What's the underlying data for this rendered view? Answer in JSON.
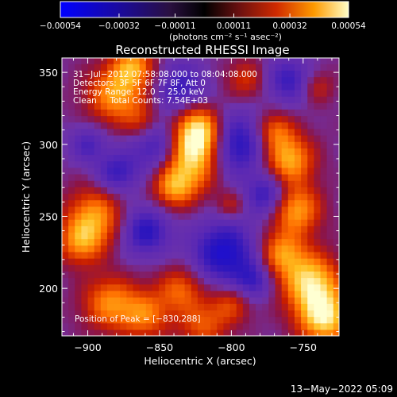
{
  "chart_data": {
    "type": "heatmap",
    "title": "Reconstructed RHESSI Image",
    "xlabel": "Heliocentric X (arcsec)",
    "ylabel": "Heliocentric Y (arcsec)",
    "xlim": [
      -918,
      -725
    ],
    "ylim": [
      167,
      360
    ],
    "x_ticks": [
      -900,
      -850,
      -800,
      -750
    ],
    "x_tick_labels": [
      "−900",
      "−850",
      "−800",
      "−750"
    ],
    "y_ticks": [
      200,
      250,
      300,
      350
    ],
    "y_tick_labels": [
      "200",
      "250",
      "300",
      "350"
    ],
    "colorbar": {
      "min": -0.00054,
      "max": 0.00054,
      "ticks": [
        -0.00054,
        -0.00032,
        -0.00011,
        0.00011,
        0.00032,
        0.00054
      ],
      "tick_labels": [
        "−0.00054",
        "−0.00032",
        "−0.00011",
        "0.00011",
        "0.00032",
        "0.00054"
      ],
      "unit_label": "(photons cm⁻² s⁻¹ asec⁻²)"
    },
    "annotations": [
      "31−Jul−2012 07:58:08.000 to 08:04:08.000",
      "Detectors: 3F 5F 6F 7F 8F, Att 0",
      "Energy Range: 12.0 − 25.0 keV",
      "Clean     Total Counts: 7.54E+03"
    ],
    "peak_label": "Position of Peak = [−830,288]",
    "peak_position": [
      -830,
      288
    ],
    "hotspots": [
      {
        "x": -828,
        "y": 292,
        "r": 16,
        "v": 1.0
      },
      {
        "x": -822,
        "y": 310,
        "r": 12,
        "v": 0.85
      },
      {
        "x": -840,
        "y": 270,
        "r": 10,
        "v": 0.55
      },
      {
        "x": -880,
        "y": 335,
        "r": 14,
        "v": 0.7
      },
      {
        "x": -868,
        "y": 355,
        "r": 10,
        "v": 0.6
      },
      {
        "x": -862,
        "y": 315,
        "r": 9,
        "v": 0.4
      },
      {
        "x": -895,
        "y": 250,
        "r": 14,
        "v": 0.65
      },
      {
        "x": -905,
        "y": 232,
        "r": 11,
        "v": 0.55
      },
      {
        "x": -885,
        "y": 190,
        "r": 13,
        "v": 0.6
      },
      {
        "x": -860,
        "y": 182,
        "r": 12,
        "v": 0.55
      },
      {
        "x": -835,
        "y": 200,
        "r": 11,
        "v": 0.5
      },
      {
        "x": -820,
        "y": 175,
        "r": 12,
        "v": 0.45
      },
      {
        "x": -800,
        "y": 190,
        "r": 10,
        "v": 0.4
      },
      {
        "x": -760,
        "y": 290,
        "r": 12,
        "v": 0.75
      },
      {
        "x": -755,
        "y": 255,
        "r": 12,
        "v": 0.7
      },
      {
        "x": -765,
        "y": 225,
        "r": 11,
        "v": 0.6
      },
      {
        "x": -745,
        "y": 205,
        "r": 14,
        "v": 0.85
      },
      {
        "x": -735,
        "y": 180,
        "r": 13,
        "v": 0.9
      },
      {
        "x": -770,
        "y": 310,
        "r": 9,
        "v": 0.5
      },
      {
        "x": -790,
        "y": 345,
        "r": 10,
        "v": 0.35
      },
      {
        "x": -740,
        "y": 340,
        "r": 8,
        "v": 0.3
      },
      {
        "x": -800,
        "y": 258,
        "r": 7,
        "v": 0.3
      }
    ],
    "coldspots": [
      {
        "x": -850,
        "y": 300,
        "r": 14,
        "v": -0.7
      },
      {
        "x": -800,
        "y": 300,
        "r": 16,
        "v": -0.75
      },
      {
        "x": -805,
        "y": 225,
        "r": 16,
        "v": -0.7
      },
      {
        "x": -860,
        "y": 240,
        "r": 12,
        "v": -0.6
      },
      {
        "x": -880,
        "y": 280,
        "r": 10,
        "v": -0.5
      },
      {
        "x": -775,
        "y": 265,
        "r": 10,
        "v": -0.55
      },
      {
        "x": -835,
        "y": 340,
        "r": 12,
        "v": -0.5
      },
      {
        "x": -760,
        "y": 345,
        "r": 11,
        "v": -0.5
      },
      {
        "x": -900,
        "y": 300,
        "r": 9,
        "v": -0.4
      },
      {
        "x": -785,
        "y": 205,
        "r": 9,
        "v": -0.45
      }
    ],
    "limb": {
      "cx": -160,
      "cy": 0,
      "r": 945
    },
    "colors": {
      "background": "#000000",
      "text": "#ffffff",
      "limb": "#ffffff"
    }
  },
  "footer": {
    "date": "13−May−2022 05:09"
  }
}
